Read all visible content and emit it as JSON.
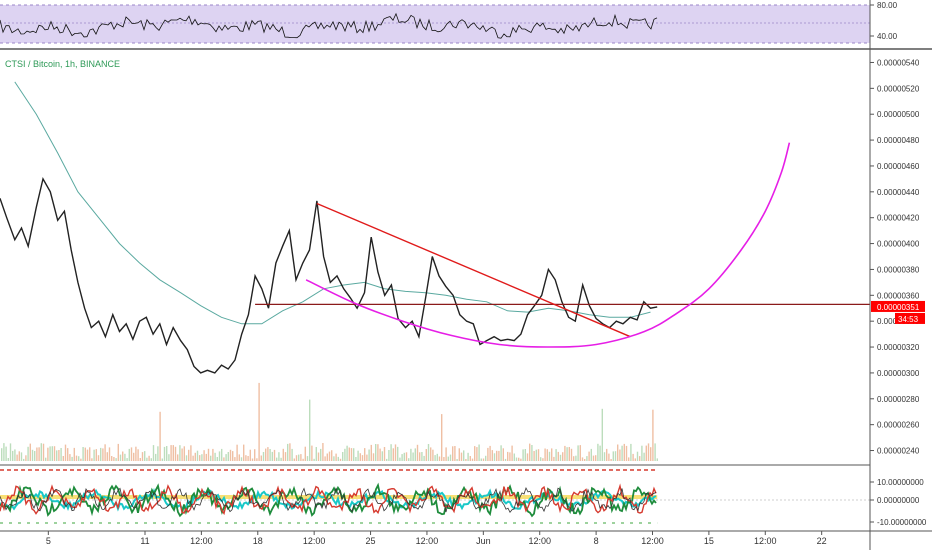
{
  "symbol_info": "CTSI / Bitcoin, 1h, BINANCE",
  "colors": {
    "price": "#222222",
    "ma": "#5aa9a0",
    "downtrend": "#e01b1b",
    "resistance": "#8b1a1a",
    "cup": "#e61ee6",
    "rsi_band": "#ddd3f2",
    "rsi_line": "#111111",
    "last_price_badge": "#ff0000",
    "osc_green": "#1e8c3c",
    "osc_red": "#d63a2f",
    "osc_cyan": "#18c8c8",
    "osc_yellow": "#f5d33a"
  },
  "rsi_panel": {
    "tick_labels": [
      "80.00",
      "40.00"
    ]
  },
  "price_axis": {
    "tick_labels": [
      "0.00000540",
      "0.00000520",
      "0.00000500",
      "0.00000480",
      "0.00000460",
      "0.00000440",
      "0.00000420",
      "0.00000400",
      "0.00000380",
      "0.00000360",
      "0.00000340",
      "0.00000320",
      "0.00000300",
      "0.00000280",
      "0.00000260",
      "0.00000240"
    ],
    "last_price": "0.00000351",
    "countdown": "34:53"
  },
  "osc_panel": {
    "tick_labels": [
      "10.00000000",
      "0.00000000",
      "-10.00000000"
    ]
  },
  "time_axis": {
    "tick_labels": [
      "5",
      "11",
      "12:00",
      "18",
      "12:00",
      "25",
      "12:00",
      "Jun",
      "12:00",
      "8",
      "12:00",
      "15",
      "12:00",
      "22"
    ]
  },
  "chart_data": {
    "type": "line",
    "title": "CTSI / Bitcoin, 1h, BINANCE",
    "ylim": [
      2.35e-06,
      5.45e-06
    ],
    "x_domain": [
      "2020-05-02",
      "2020-06-25"
    ],
    "x_ticks": [
      "2020-05-05",
      "2020-05-11",
      "2020-05-14 12:00",
      "2020-05-18",
      "2020-05-21 12:00",
      "2020-05-25",
      "2020-05-28 12:00",
      "2020-06-01",
      "2020-06-04 12:00",
      "2020-06-08",
      "2020-06-11 12:00",
      "2020-06-15",
      "2020-06-18 12:00",
      "2020-06-22"
    ],
    "price_series": {
      "x": [
        "2020-05-02 00:00",
        "2020-05-02 10:00",
        "2020-05-02 22:00",
        "2020-05-03 08:00",
        "2020-05-03 18:00",
        "2020-05-04 06:00",
        "2020-05-04 16:00",
        "2020-05-05 03:00",
        "2020-05-05 14:00",
        "2020-05-06 00:00",
        "2020-05-06 10:00",
        "2020-05-06 20:00",
        "2020-05-07 06:00",
        "2020-05-07 16:00",
        "2020-05-08 03:00",
        "2020-05-08 13:00",
        "2020-05-09 00:00",
        "2020-05-09 10:00",
        "2020-05-09 20:00",
        "2020-05-10 06:00",
        "2020-05-10 16:00",
        "2020-05-11 02:00",
        "2020-05-11 12:00",
        "2020-05-11 22:00",
        "2020-05-12 08:00",
        "2020-05-12 18:00",
        "2020-05-13 05:00",
        "2020-05-13 15:00",
        "2020-05-14 01:00",
        "2020-05-14 11:00",
        "2020-05-14 21:00",
        "2020-05-15 08:00",
        "2020-05-15 18:00",
        "2020-05-16 04:00",
        "2020-05-16 14:00",
        "2020-05-17 00:00",
        "2020-05-17 10:00",
        "2020-05-17 20:00",
        "2020-05-18 06:00",
        "2020-05-18 16:00",
        "2020-05-19 03:00",
        "2020-05-19 13:00",
        "2020-05-19 23:00",
        "2020-05-20 09:00",
        "2020-05-20 19:00",
        "2020-05-21 05:00",
        "2020-05-21 16:00",
        "2020-05-22 02:00",
        "2020-05-22 12:00",
        "2020-05-22 22:00",
        "2020-05-23 08:00",
        "2020-05-23 18:00",
        "2020-05-24 04:00",
        "2020-05-24 15:00",
        "2020-05-25 01:00",
        "2020-05-25 11:00",
        "2020-05-25 21:00",
        "2020-05-26 07:00",
        "2020-05-26 17:00",
        "2020-05-27 04:00",
        "2020-05-27 14:00",
        "2020-05-28 00:00",
        "2020-05-28 10:00",
        "2020-05-28 20:00",
        "2020-05-29 06:00",
        "2020-05-29 16:00",
        "2020-05-30 03:00",
        "2020-05-30 13:00",
        "2020-05-30 23:00",
        "2020-05-31 09:00",
        "2020-05-31 19:00",
        "2020-06-01 05:00",
        "2020-06-01 16:00",
        "2020-06-02 02:00",
        "2020-06-02 12:00",
        "2020-06-02 22:00",
        "2020-06-03 08:00",
        "2020-06-03 18:00",
        "2020-06-04 04:00",
        "2020-06-04 15:00",
        "2020-06-05 01:00",
        "2020-06-05 11:00",
        "2020-06-05 21:00",
        "2020-06-06 07:00",
        "2020-06-06 17:00",
        "2020-06-07 04:00",
        "2020-06-07 14:00",
        "2020-06-08 00:00",
        "2020-06-08 10:00",
        "2020-06-08 20:00",
        "2020-06-09 06:00",
        "2020-06-09 16:00",
        "2020-06-10 03:00",
        "2020-06-10 13:00",
        "2020-06-10 23:00",
        "2020-06-11 09:00",
        "2020-06-11 19:00"
      ],
      "y": [
        4.35e-06,
        4.2e-06,
        4.03e-06,
        4.12e-06,
        3.98e-06,
        4.28e-06,
        4.5e-06,
        4.4e-06,
        4.18e-06,
        4.25e-06,
        3.95e-06,
        3.7e-06,
        3.5e-06,
        3.35e-06,
        3.4e-06,
        3.28e-06,
        3.45e-06,
        3.32e-06,
        3.38e-06,
        3.26e-06,
        3.4e-06,
        3.43e-06,
        3.3e-06,
        3.38e-06,
        3.22e-06,
        3.35e-06,
        3.25e-06,
        3.18e-06,
        3.05e-06,
        3e-06,
        3.02e-06,
        3e-06,
        3.06e-06,
        3.03e-06,
        3.1e-06,
        3.3e-06,
        3.45e-06,
        3.75e-06,
        3.65e-06,
        3.5e-06,
        3.85e-06,
        3.98e-06,
        4.1e-06,
        3.72e-06,
        3.85e-06,
        3.95e-06,
        4.33e-06,
        3.9e-06,
        3.7e-06,
        3.75e-06,
        3.65e-06,
        3.58e-06,
        3.5e-06,
        3.62e-06,
        4.05e-06,
        3.78e-06,
        3.6e-06,
        3.68e-06,
        3.42e-06,
        3.35e-06,
        3.4e-06,
        3.28e-06,
        3.58e-06,
        3.9e-06,
        3.75e-06,
        3.67e-06,
        3.6e-06,
        3.45e-06,
        3.4e-06,
        3.38e-06,
        3.22e-06,
        3.25e-06,
        3.28e-06,
        3.25e-06,
        3.26e-06,
        3.25e-06,
        3.3e-06,
        3.45e-06,
        3.52e-06,
        3.6e-06,
        3.8e-06,
        3.72e-06,
        3.55e-06,
        3.43e-06,
        3.4e-06,
        3.68e-06,
        3.52e-06,
        3.42e-06,
        3.38e-06,
        3.35e-06,
        3.4e-06,
        3.38e-06,
        3.43e-06,
        3.41e-06,
        3.55e-06,
        3.5e-06,
        3.51e-06
      ]
    },
    "ma_series": {
      "x": [
        "2020-05-02 22:00",
        "2020-05-04 06:00",
        "2020-05-05 14:00",
        "2020-05-06 20:00",
        "2020-05-08 03:00",
        "2020-05-09 10:00",
        "2020-05-10 16:00",
        "2020-05-11 22:00",
        "2020-05-13 05:00",
        "2020-05-14 11:00",
        "2020-05-15 18:00",
        "2020-05-17 00:00",
        "2020-05-18 06:00",
        "2020-05-19 13:00",
        "2020-05-20 19:00",
        "2020-05-22 02:00",
        "2020-05-23 08:00",
        "2020-05-24 15:00",
        "2020-05-25 21:00",
        "2020-05-27 04:00",
        "2020-05-28 10:00",
        "2020-05-29 16:00",
        "2020-05-30 23:00",
        "2020-06-01 05:00",
        "2020-06-02 12:00",
        "2020-06-03 18:00",
        "2020-06-05 01:00",
        "2020-06-06 07:00",
        "2020-06-07 14:00",
        "2020-06-08 20:00",
        "2020-06-10 03:00",
        "2020-06-11 09:00"
      ],
      "y": [
        5.25e-06,
        5e-06,
        4.7e-06,
        4.4e-06,
        4.2e-06,
        4e-06,
        3.85e-06,
        3.72e-06,
        3.62e-06,
        3.52e-06,
        3.43e-06,
        3.38e-06,
        3.38e-06,
        3.48e-06,
        3.55e-06,
        3.65e-06,
        3.68e-06,
        3.7e-06,
        3.65e-06,
        3.63e-06,
        3.62e-06,
        3.6e-06,
        3.57e-06,
        3.55e-06,
        3.48e-06,
        3.47e-06,
        3.5e-06,
        3.48e-06,
        3.45e-06,
        3.43e-06,
        3.43e-06,
        3.47e-06
      ]
    },
    "annotations": {
      "downtrend_line": {
        "x": [
          "2020-05-21 16:00",
          "2020-06-10 03:00"
        ],
        "y": [
          4.31e-06,
          3.28e-06
        ]
      },
      "resistance_line": {
        "x": [
          "2020-05-17 20:00",
          "2020-06-25 00:00"
        ],
        "y": [
          3.53e-06,
          3.53e-06
        ]
      },
      "cup_curve": {
        "x": [
          "2020-05-21 00:00",
          "2020-05-24 00:00",
          "2020-05-27 00:00",
          "2020-05-30 00:00",
          "2020-06-02 00:00",
          "2020-06-05 00:00",
          "2020-06-08 00:00",
          "2020-06-11 00:00",
          "2020-06-13 00:00",
          "2020-06-15 00:00",
          "2020-06-17 00:00",
          "2020-06-18 12:00",
          "2020-06-19 12:00",
          "2020-06-20 00:00"
        ],
        "y": [
          3.72e-06,
          3.54e-06,
          3.4e-06,
          3.29e-06,
          3.22e-06,
          3.2e-06,
          3.22e-06,
          3.32e-06,
          3.46e-06,
          3.65e-06,
          3.95e-06,
          4.25e-06,
          4.55e-06,
          4.78e-06
        ]
      },
      "last_price": 3.51e-06
    }
  }
}
